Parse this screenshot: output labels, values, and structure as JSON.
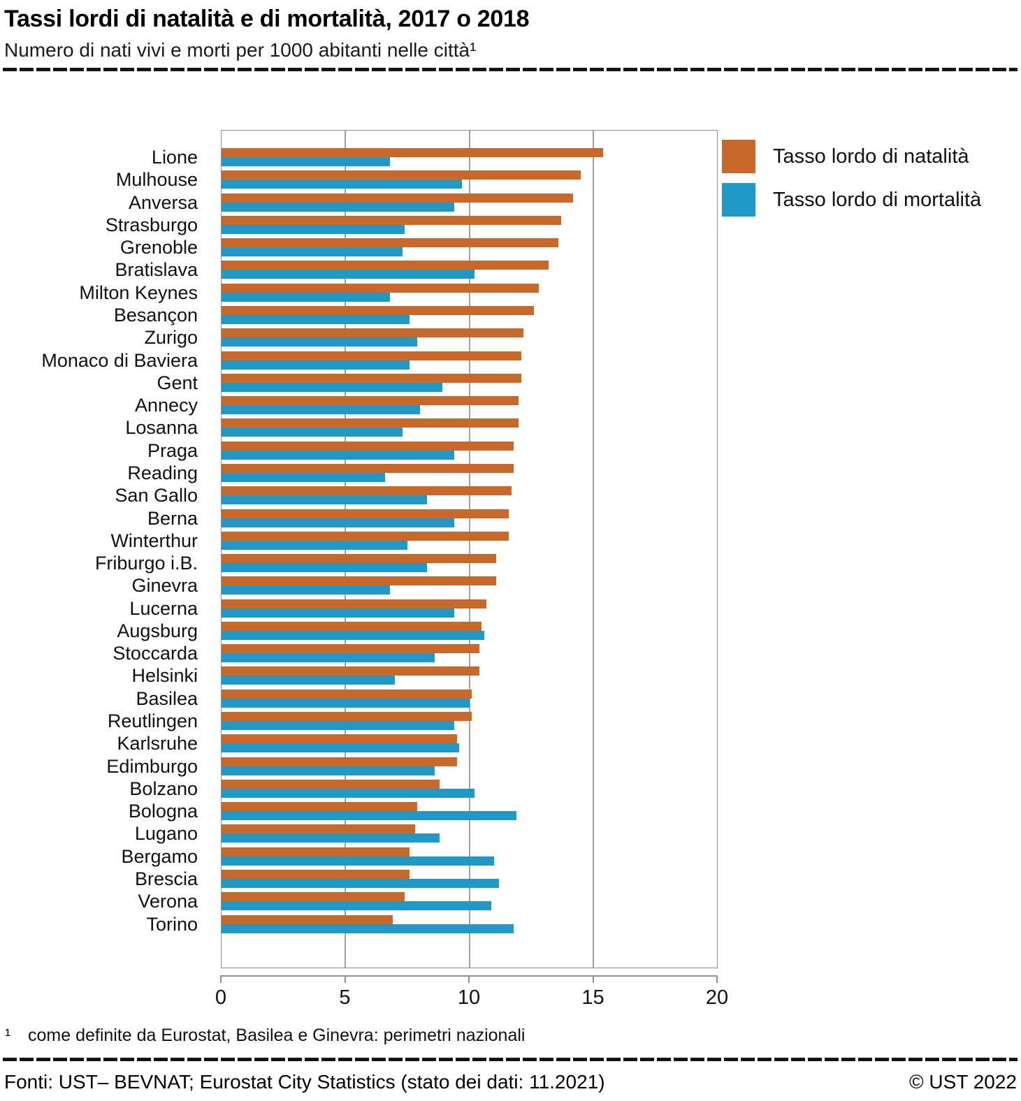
{
  "header": {
    "title": "Tassi lordi di natalità e di mortalità, 2017 o 2018",
    "subtitle": "Numero di nati vivi e morti per 1000 abitanti nelle città¹"
  },
  "colors": {
    "natalita": "#c8682b",
    "mortalita": "#2099c6",
    "grid": "#a0a0a0",
    "frame": "#8f8f8f"
  },
  "legend": {
    "items": [
      {
        "label": "Tasso lordo di natalità",
        "color_key": "natalita"
      },
      {
        "label": "Tasso lordo di mortalità",
        "color_key": "mortalita"
      }
    ]
  },
  "axis": {
    "ticks": [
      "0",
      "5",
      "10",
      "15",
      "20"
    ]
  },
  "footnote": {
    "marker": "¹",
    "text": "come definite da Eurostat, Basilea e Ginevra: perimetri nazionali"
  },
  "footer": {
    "source": "Fonti: UST– BEVNAT; Eurostat City Statistics (stato dei dati: 11.2021)",
    "copyright": "© UST 2022"
  },
  "chart_data": {
    "type": "bar",
    "orientation": "horizontal",
    "title": "Tassi lordi di natalità e di mortalità, 2017 o 2018",
    "subtitle": "Numero di nati vivi e morti per 1000 abitanti nelle città¹",
    "xlabel": "",
    "ylabel": "",
    "xlim": [
      0,
      20
    ],
    "xticks": [
      0,
      5,
      10,
      15,
      20
    ],
    "grid": true,
    "legend_position": "top-right",
    "categories": [
      "Lione",
      "Mulhouse",
      "Anversa",
      "Strasburgo",
      "Grenoble",
      "Bratislava",
      "Milton Keynes",
      "Besançon",
      "Zurigo",
      "Monaco di Baviera",
      "Gent",
      "Annecy",
      "Losanna",
      "Praga",
      "Reading",
      "San Gallo",
      "Berna",
      "Winterthur",
      "Friburgo i.B.",
      "Ginevra",
      "Lucerna",
      "Augsburg",
      "Stoccarda",
      "Helsinki",
      "Basilea",
      "Reutlingen",
      "Karlsruhe",
      "Edimburgo",
      "Bolzano",
      "Bologna",
      "Lugano",
      "Bergamo",
      "Brescia",
      "Verona",
      "Torino"
    ],
    "series": [
      {
        "name": "Tasso lordo di natalità",
        "values": [
          15.4,
          14.5,
          14.2,
          13.7,
          13.6,
          13.2,
          12.8,
          12.6,
          12.2,
          12.1,
          12.1,
          12.0,
          12.0,
          11.8,
          11.8,
          11.7,
          11.6,
          11.6,
          11.1,
          11.1,
          10.7,
          10.5,
          10.4,
          10.4,
          10.1,
          10.1,
          9.5,
          9.5,
          8.8,
          7.9,
          7.8,
          7.6,
          7.6,
          7.4,
          6.9
        ]
      },
      {
        "name": "Tasso lordo di mortalità",
        "values": [
          6.8,
          9.7,
          9.4,
          7.4,
          7.3,
          10.2,
          6.8,
          7.6,
          7.9,
          7.6,
          8.9,
          8.0,
          7.3,
          9.4,
          6.6,
          8.3,
          9.4,
          7.5,
          8.3,
          6.8,
          9.4,
          10.6,
          8.6,
          7.0,
          10.0,
          9.4,
          9.6,
          8.6,
          10.2,
          11.9,
          8.8,
          11.0,
          11.2,
          10.9,
          11.8
        ]
      }
    ]
  }
}
